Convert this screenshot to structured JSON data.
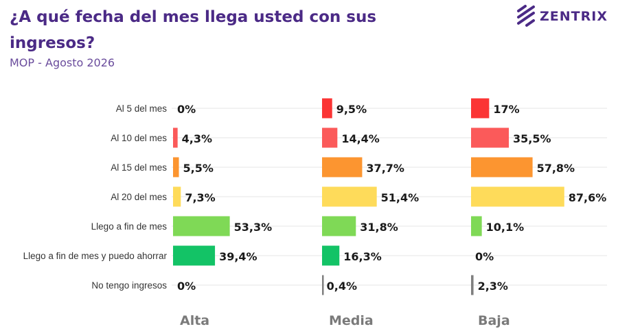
{
  "header": {
    "title": "¿A qué fecha del mes llega usted con sus ingresos?",
    "subtitle": "MOP - Agosto 2026",
    "logo_text": "ZENTRIX"
  },
  "colors": {
    "title": "#4b2a86",
    "grid": "#e6e6e6",
    "bar_colors": [
      "#fb3434",
      "#fb5a5a",
      "#fc9530",
      "#fedb5a",
      "#7fd956",
      "#13c366",
      "#7f7f7f"
    ]
  },
  "chart_data": {
    "type": "bar",
    "orientation": "horizontal",
    "categories": [
      "Al 5 del mes",
      "Al 10 del mes",
      "Al 15 del mes",
      "Al 20 del mes",
      "Llego a fin de mes",
      "Llego a fin de mes y puedo ahorrar",
      "No tengo ingresos"
    ],
    "series": [
      {
        "name": "Alta",
        "values": [
          0,
          4.3,
          5.5,
          7.3,
          53.3,
          39.4,
          0
        ],
        "labels": [
          "0%",
          "4,3%",
          "5,5%",
          "7,3%",
          "53,3%",
          "39,4%",
          "0%"
        ]
      },
      {
        "name": "Media",
        "values": [
          9.5,
          14.4,
          37.7,
          51.4,
          31.8,
          16.3,
          0.4
        ],
        "labels": [
          "9,5%",
          "14,4%",
          "37,7%",
          "51,4%",
          "31,8%",
          "16,3%",
          "0,4%"
        ]
      },
      {
        "name": "Baja",
        "values": [
          17,
          35.5,
          57.8,
          87.6,
          10.1,
          0,
          2.3
        ],
        "labels": [
          "17%",
          "35,5%",
          "57,8%",
          "87,6%",
          "10,1%",
          "0%",
          "2,3%"
        ]
      }
    ],
    "xlim": [
      0,
      100
    ],
    "grid": true,
    "legend": "none"
  }
}
